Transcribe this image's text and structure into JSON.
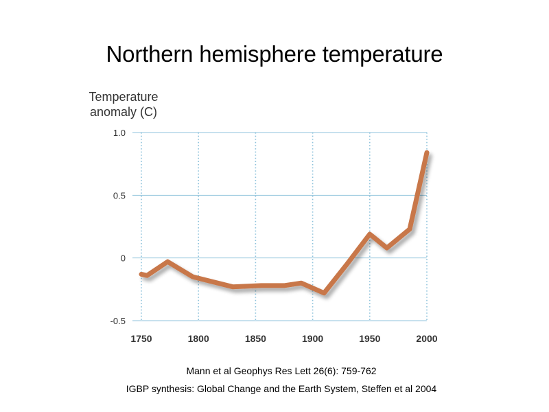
{
  "slide": {
    "title": "Northern hemisphere temperature",
    "source_line_1": "Mann et al Geophys Res Lett 26(6): 759-762",
    "source_line_2": "IGBP synthesis: Global Change and the Earth System, Steffen et al 2004"
  },
  "chart_data": {
    "type": "line",
    "title": "Northern hemisphere temperature",
    "ylabel_lines": [
      "Temperature",
      "anomaly (C)"
    ],
    "xlabel": "",
    "xlim": [
      1750,
      2000
    ],
    "ylim": [
      -0.5,
      1.0
    ],
    "x_ticks": [
      1750,
      1800,
      1850,
      1900,
      1950,
      2000
    ],
    "x_tick_labels": [
      "1750",
      "1800",
      "1850",
      "1900",
      "1950",
      "2000"
    ],
    "highlight_tick": "1950",
    "y_ticks": [
      -0.5,
      0,
      0.5,
      1.0
    ],
    "y_tick_labels": [
      "-0.5",
      "0",
      "0.5",
      "1.0"
    ],
    "grid": true,
    "colors": {
      "line": "#c8774a",
      "grid": "#8fc3dc",
      "highlight_tick": "#c8774a",
      "axis_text": "#333333"
    },
    "series": [
      {
        "name": "Temperature anomaly",
        "x": [
          1750,
          1755,
          1773,
          1795,
          1830,
          1855,
          1875,
          1890,
          1910,
          1930,
          1950,
          1965,
          1985,
          2000
        ],
        "values": [
          -0.13,
          -0.14,
          -0.03,
          -0.15,
          -0.23,
          -0.22,
          -0.22,
          -0.2,
          -0.28,
          -0.05,
          0.19,
          0.08,
          0.23,
          0.84
        ]
      }
    ]
  }
}
